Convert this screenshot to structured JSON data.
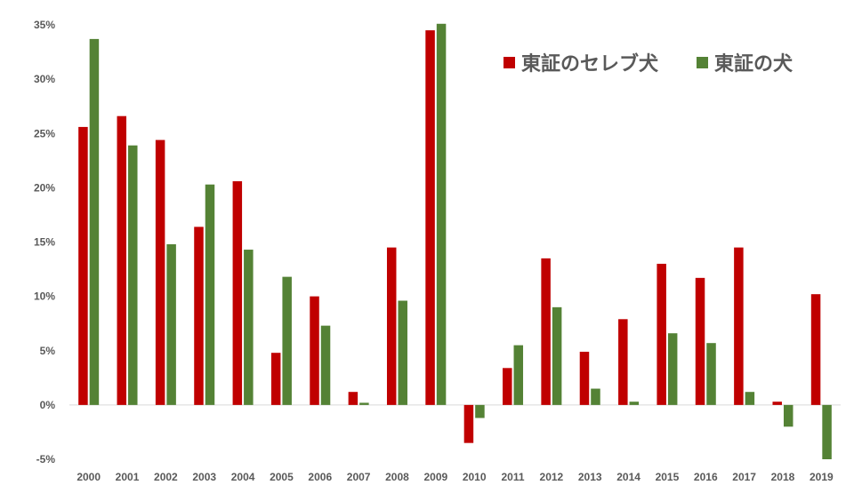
{
  "chart_data": {
    "type": "bar",
    "title": "",
    "xlabel": "",
    "ylabel": "",
    "categories": [
      "2000",
      "2001",
      "2002",
      "2003",
      "2004",
      "2005",
      "2006",
      "2007",
      "2008",
      "2009",
      "2010",
      "2011",
      "2012",
      "2013",
      "2014",
      "2015",
      "2016",
      "2017",
      "2018",
      "2019"
    ],
    "series": [
      {
        "name": "東証のセレブ犬",
        "color": "#C00000",
        "values": [
          25.6,
          26.6,
          24.4,
          16.4,
          20.6,
          4.8,
          10.0,
          1.2,
          14.5,
          34.5,
          -3.5,
          3.4,
          13.5,
          4.9,
          7.9,
          13.0,
          11.7,
          14.5,
          0.3,
          10.2
        ]
      },
      {
        "name": "東証の犬",
        "color": "#548235",
        "values": [
          33.7,
          23.9,
          14.8,
          20.3,
          14.3,
          11.8,
          7.3,
          0.2,
          9.6,
          35.1,
          -1.2,
          5.5,
          9.0,
          1.5,
          0.3,
          6.6,
          5.7,
          1.2,
          -2.0,
          -5.0
        ]
      }
    ],
    "ylim": [
      -5,
      35
    ],
    "yticks": [
      "-5%",
      "0%",
      "5%",
      "10%",
      "15%",
      "20%",
      "25%",
      "30%",
      "35%"
    ],
    "ytick_values": [
      -5,
      0,
      5,
      10,
      15,
      20,
      25,
      30,
      35
    ],
    "legend_position": "top-right",
    "grid": false
  }
}
